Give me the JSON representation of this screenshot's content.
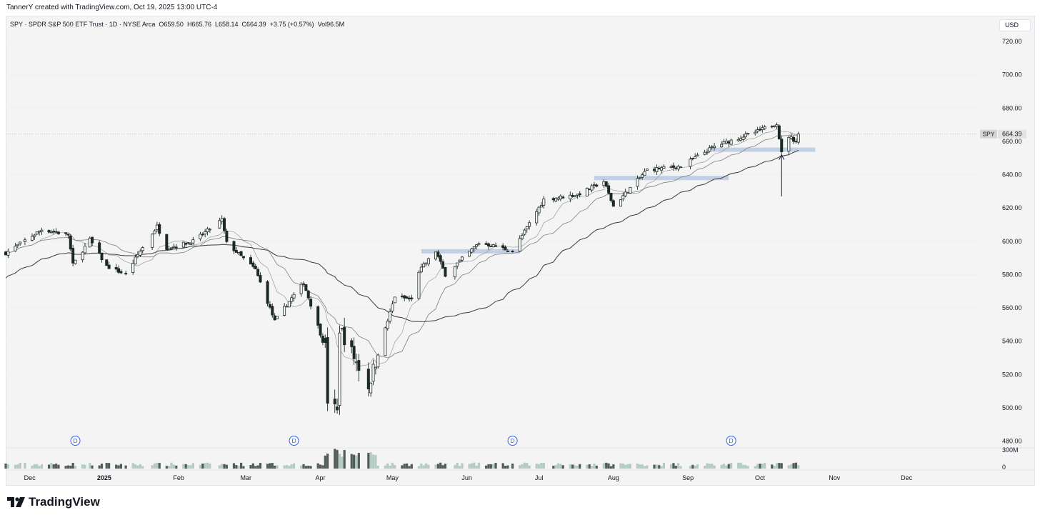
{
  "credit": "TannerY created with TradingView.com, Oct 19, 2025 13:00 UTC-4",
  "legend": {
    "symbol": "SPY",
    "name": "SPDR S&P 500 ETF Trust",
    "interval": "1D",
    "exchange": "NYSE Arca",
    "open": "O659.50",
    "high": "H665.76",
    "low": "L658.14",
    "close": "C664.39",
    "change": "+3.75 (+0.57%)",
    "volume": "Vol96.5M"
  },
  "currency_button": "USD",
  "brand": "TradingView",
  "price_tag": {
    "symbol": "SPY",
    "value": "664.39"
  },
  "volume_axis": {
    "top_label": "300M",
    "bottom_label": "0"
  },
  "dividend_marker": "D",
  "colors": {
    "up": "#ffffff",
    "down": "#1b2a23",
    "outline": "#1b2a23",
    "zone": "#b9c9e3",
    "ma_fast": "#9a9a9a",
    "ma_slow": "#3a3a3a",
    "dividend": "#2962ff",
    "volume_up": "#9dbdb0",
    "volume_down": "#1b2a23"
  },
  "chart_data": {
    "type": "candlestick",
    "title": "SPY · SPDR S&P 500 ETF Trust · 1D · NYSE Arca",
    "ylim": [
      476,
      735
    ],
    "y_ticks": [
      480,
      500,
      520,
      540,
      560,
      580,
      600,
      620,
      640,
      660,
      680,
      700,
      720
    ],
    "x_domain": [
      "2024-11-21",
      "2025-12-31"
    ],
    "x_ticks": [
      {
        "date": "2024-12-01",
        "label": "Dec"
      },
      {
        "date": "2025-01-01",
        "label": "2025"
      },
      {
        "date": "2025-02-01",
        "label": "Feb"
      },
      {
        "date": "2025-03-01",
        "label": "Mar"
      },
      {
        "date": "2025-04-01",
        "label": "Apr"
      },
      {
        "date": "2025-05-01",
        "label": "May"
      },
      {
        "date": "2025-06-01",
        "label": "Jun"
      },
      {
        "date": "2025-07-01",
        "label": "Jul"
      },
      {
        "date": "2025-08-01",
        "label": "Aug"
      },
      {
        "date": "2025-09-01",
        "label": "Sep"
      },
      {
        "date": "2025-10-01",
        "label": "Oct"
      },
      {
        "date": "2025-11-01",
        "label": "Nov"
      },
      {
        "date": "2025-12-01",
        "label": "Dec"
      }
    ],
    "close_path": [
      [
        "2024-11-21",
        593
      ],
      [
        "2024-12-06",
        607
      ],
      [
        "2024-12-17",
        604
      ],
      [
        "2024-12-19",
        586
      ],
      [
        "2024-12-26",
        601
      ],
      [
        "2025-01-02",
        585
      ],
      [
        "2025-01-10",
        580
      ],
      [
        "2025-01-15",
        592
      ],
      [
        "2025-01-23",
        609
      ],
      [
        "2025-01-27",
        596
      ],
      [
        "2025-02-07",
        600
      ],
      [
        "2025-02-19",
        613
      ],
      [
        "2025-02-21",
        599
      ],
      [
        "2025-03-05",
        583
      ],
      [
        "2025-03-13",
        552
      ],
      [
        "2025-03-19",
        564
      ],
      [
        "2025-03-25",
        575
      ],
      [
        "2025-04-03",
        536
      ],
      [
        "2025-04-04",
        505
      ],
      [
        "2025-04-08",
        497
      ],
      [
        "2025-04-09",
        548
      ],
      [
        "2025-04-21",
        513
      ],
      [
        "2025-05-02",
        567
      ],
      [
        "2025-05-09",
        565
      ],
      [
        "2025-05-12",
        582
      ],
      [
        "2025-05-19",
        594
      ],
      [
        "2025-05-23",
        580
      ],
      [
        "2025-06-06",
        599
      ],
      [
        "2025-06-13",
        597
      ],
      [
        "2025-06-20",
        594
      ],
      [
        "2025-07-03",
        625
      ],
      [
        "2025-07-17",
        628
      ],
      [
        "2025-07-28",
        636
      ],
      [
        "2025-08-01",
        621
      ],
      [
        "2025-08-15",
        643
      ],
      [
        "2025-08-29",
        645
      ],
      [
        "2025-09-12",
        657
      ],
      [
        "2025-09-30",
        666
      ],
      [
        "2025-10-08",
        671
      ],
      [
        "2025-10-10",
        653
      ],
      [
        "2025-10-13",
        663
      ],
      [
        "2025-10-16",
        660
      ],
      [
        "2025-10-17",
        664.39
      ]
    ],
    "ohlc_last": {
      "open": 659.5,
      "high": 665.76,
      "low": 658.14,
      "close": 664.39,
      "change": 3.75,
      "change_pct": 0.57,
      "volume": "96.5M"
    },
    "support_zones": [
      {
        "start": "2025-05-13",
        "end": "2025-06-23",
        "price": 594
      },
      {
        "start": "2025-07-24",
        "end": "2025-09-18",
        "price": 638
      },
      {
        "start": "2025-09-10",
        "end": "2025-10-24",
        "price": 655
      }
    ],
    "annotation_arrow": {
      "date": "2025-10-10",
      "from_price": 627,
      "to_price": 652
    },
    "dividends": [
      "2024-12-20",
      "2025-03-21",
      "2025-06-20",
      "2025-09-19"
    ],
    "last_price": 664.39,
    "moving_averages": [
      "fast",
      "medium",
      "slow"
    ]
  }
}
